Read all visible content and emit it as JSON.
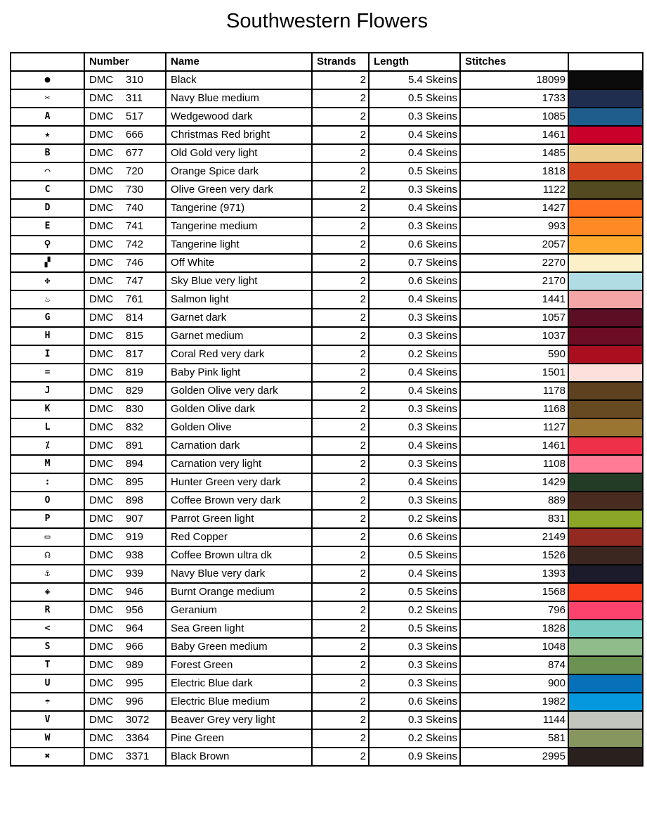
{
  "title": "Southwestern Flowers",
  "headers": {
    "symbol": "",
    "number": "Number",
    "name": "Name",
    "strands": "Strands",
    "length": "Length",
    "stitches": "Stitches",
    "color": ""
  },
  "rows": [
    {
      "symbol": "●",
      "brand": "DMC",
      "number": "310",
      "name": "Black",
      "strands": "2",
      "length": "5.4 Skeins",
      "stitches": "18099",
      "color": "#0b0b0b"
    },
    {
      "symbol": "✂",
      "brand": "DMC",
      "number": "311",
      "name": "Navy Blue medium",
      "strands": "2",
      "length": "0.5 Skeins",
      "stitches": "1733",
      "color": "#1f2d4f"
    },
    {
      "symbol": "A",
      "brand": "DMC",
      "number": "517",
      "name": "Wedgewood dark",
      "strands": "2",
      "length": "0.3 Skeins",
      "stitches": "1085",
      "color": "#1f5e8c"
    },
    {
      "symbol": "★",
      "brand": "DMC",
      "number": "666",
      "name": "Christmas Red bright",
      "strands": "2",
      "length": "0.4 Skeins",
      "stitches": "1461",
      "color": "#c8002a"
    },
    {
      "symbol": "B",
      "brand": "DMC",
      "number": "677",
      "name": "Old Gold very light",
      "strands": "2",
      "length": "0.4 Skeins",
      "stitches": "1485",
      "color": "#ebcd8e"
    },
    {
      "symbol": "⌒",
      "brand": "DMC",
      "number": "720",
      "name": "Orange Spice dark",
      "strands": "2",
      "length": "0.5 Skeins",
      "stitches": "1818",
      "color": "#d4441e"
    },
    {
      "symbol": "C",
      "brand": "DMC",
      "number": "730",
      "name": "Olive Green very dark",
      "strands": "2",
      "length": "0.3 Skeins",
      "stitches": "1122",
      "color": "#544a20"
    },
    {
      "symbol": "D",
      "brand": "DMC",
      "number": "740",
      "name": "Tangerine (971)",
      "strands": "2",
      "length": "0.4 Skeins",
      "stitches": "1427",
      "color": "#ff7020"
    },
    {
      "symbol": "E",
      "brand": "DMC",
      "number": "741",
      "name": "Tangerine medium",
      "strands": "2",
      "length": "0.3 Skeins",
      "stitches": "993",
      "color": "#ff8a25"
    },
    {
      "symbol": "⚲",
      "brand": "DMC",
      "number": "742",
      "name": "Tangerine light",
      "strands": "2",
      "length": "0.6 Skeins",
      "stitches": "2057",
      "color": "#ffa82e"
    },
    {
      "symbol": "▞",
      "brand": "DMC",
      "number": "746",
      "name": "Off White",
      "strands": "2",
      "length": "0.7 Skeins",
      "stitches": "2270",
      "color": "#fbf0c8"
    },
    {
      "symbol": "✤",
      "brand": "DMC",
      "number": "747",
      "name": "Sky Blue very light",
      "strands": "2",
      "length": "0.6 Skeins",
      "stitches": "2170",
      "color": "#afdde3"
    },
    {
      "symbol": "♨",
      "brand": "DMC",
      "number": "761",
      "name": "Salmon light",
      "strands": "2",
      "length": "0.4 Skeins",
      "stitches": "1441",
      "color": "#f4a5a6"
    },
    {
      "symbol": "G",
      "brand": "DMC",
      "number": "814",
      "name": "Garnet dark",
      "strands": "2",
      "length": "0.3 Skeins",
      "stitches": "1057",
      "color": "#5c0f24"
    },
    {
      "symbol": "H",
      "brand": "DMC",
      "number": "815",
      "name": "Garnet medium",
      "strands": "2",
      "length": "0.3 Skeins",
      "stitches": "1037",
      "color": "#6d0d23"
    },
    {
      "symbol": "I",
      "brand": "DMC",
      "number": "817",
      "name": "Coral Red very dark",
      "strands": "2",
      "length": "0.2 Skeins",
      "stitches": "590",
      "color": "#a90f1e"
    },
    {
      "symbol": "=",
      "brand": "DMC",
      "number": "819",
      "name": "Baby Pink light",
      "strands": "2",
      "length": "0.4 Skeins",
      "stitches": "1501",
      "color": "#fde0dc"
    },
    {
      "symbol": "J",
      "brand": "DMC",
      "number": "829",
      "name": "Golden Olive very dark",
      "strands": "2",
      "length": "0.4 Skeins",
      "stitches": "1178",
      "color": "#5e4220"
    },
    {
      "symbol": "K",
      "brand": "DMC",
      "number": "830",
      "name": "Golden Olive dark",
      "strands": "2",
      "length": "0.3 Skeins",
      "stitches": "1168",
      "color": "#674a22"
    },
    {
      "symbol": "L",
      "brand": "DMC",
      "number": "832",
      "name": "Golden Olive",
      "strands": "2",
      "length": "0.3 Skeins",
      "stitches": "1127",
      "color": "#9a7431"
    },
    {
      "symbol": "⁒",
      "brand": "DMC",
      "number": "891",
      "name": "Carnation dark",
      "strands": "2",
      "length": "0.4 Skeins",
      "stitches": "1461",
      "color": "#ee3048"
    },
    {
      "symbol": "M",
      "brand": "DMC",
      "number": "894",
      "name": "Carnation very light",
      "strands": "2",
      "length": "0.3 Skeins",
      "stitches": "1108",
      "color": "#ff7b96"
    },
    {
      "symbol": ":",
      "brand": "DMC",
      "number": "895",
      "name": "Hunter Green very dark",
      "strands": "2",
      "length": "0.4 Skeins",
      "stitches": "1429",
      "color": "#233c25"
    },
    {
      "symbol": "O",
      "brand": "DMC",
      "number": "898",
      "name": "Coffee Brown very dark",
      "strands": "2",
      "length": "0.3 Skeins",
      "stitches": "889",
      "color": "#4a2b20"
    },
    {
      "symbol": "P",
      "brand": "DMC",
      "number": "907",
      "name": "Parrot Green light",
      "strands": "2",
      "length": "0.2 Skeins",
      "stitches": "831",
      "color": "#8ba527"
    },
    {
      "symbol": "▭",
      "brand": "DMC",
      "number": "919",
      "name": "Red Copper",
      "strands": "2",
      "length": "0.6 Skeins",
      "stitches": "2149",
      "color": "#932a22"
    },
    {
      "symbol": "☊",
      "brand": "DMC",
      "number": "938",
      "name": "Coffee Brown ultra dk",
      "strands": "2",
      "length": "0.5 Skeins",
      "stitches": "1526",
      "color": "#3b2620"
    },
    {
      "symbol": "⚓",
      "brand": "DMC",
      "number": "939",
      "name": "Navy Blue very dark",
      "strands": "2",
      "length": "0.4 Skeins",
      "stitches": "1393",
      "color": "#1b1b2c"
    },
    {
      "symbol": "◈",
      "brand": "DMC",
      "number": "946",
      "name": "Burnt Orange medium",
      "strands": "2",
      "length": "0.5 Skeins",
      "stitches": "1568",
      "color": "#f73d1c"
    },
    {
      "symbol": "R",
      "brand": "DMC",
      "number": "956",
      "name": "Geranium",
      "strands": "2",
      "length": "0.2 Skeins",
      "stitches": "796",
      "color": "#fc436e"
    },
    {
      "symbol": "<",
      "brand": "DMC",
      "number": "964",
      "name": "Sea Green light",
      "strands": "2",
      "length": "0.5 Skeins",
      "stitches": "1828",
      "color": "#77cbc0"
    },
    {
      "symbol": "S",
      "brand": "DMC",
      "number": "966",
      "name": "Baby Green medium",
      "strands": "2",
      "length": "0.3 Skeins",
      "stitches": "1048",
      "color": "#8fbc8a"
    },
    {
      "symbol": "T",
      "brand": "DMC",
      "number": "989",
      "name": "Forest Green",
      "strands": "2",
      "length": "0.3 Skeins",
      "stitches": "874",
      "color": "#6b9153"
    },
    {
      "symbol": "U",
      "brand": "DMC",
      "number": "995",
      "name": "Electric Blue dark",
      "strands": "2",
      "length": "0.3 Skeins",
      "stitches": "900",
      "color": "#0670b8"
    },
    {
      "symbol": "☂",
      "brand": "DMC",
      "number": "996",
      "name": "Electric Blue medium",
      "strands": "2",
      "length": "0.6 Skeins",
      "stitches": "1982",
      "color": "#0598df"
    },
    {
      "symbol": "V",
      "brand": "DMC",
      "number": "3072",
      "name": "Beaver Grey very light",
      "strands": "2",
      "length": "0.3 Skeins",
      "stitches": "1144",
      "color": "#c1c5be"
    },
    {
      "symbol": "W",
      "brand": "DMC",
      "number": "3364",
      "name": "Pine Green",
      "strands": "2",
      "length": "0.2 Skeins",
      "stitches": "581",
      "color": "#87965e"
    },
    {
      "symbol": "✖",
      "brand": "DMC",
      "number": "3371",
      "name": "Black Brown",
      "strands": "2",
      "length": "0.9 Skeins",
      "stitches": "2995",
      "color": "#2a211f"
    }
  ]
}
